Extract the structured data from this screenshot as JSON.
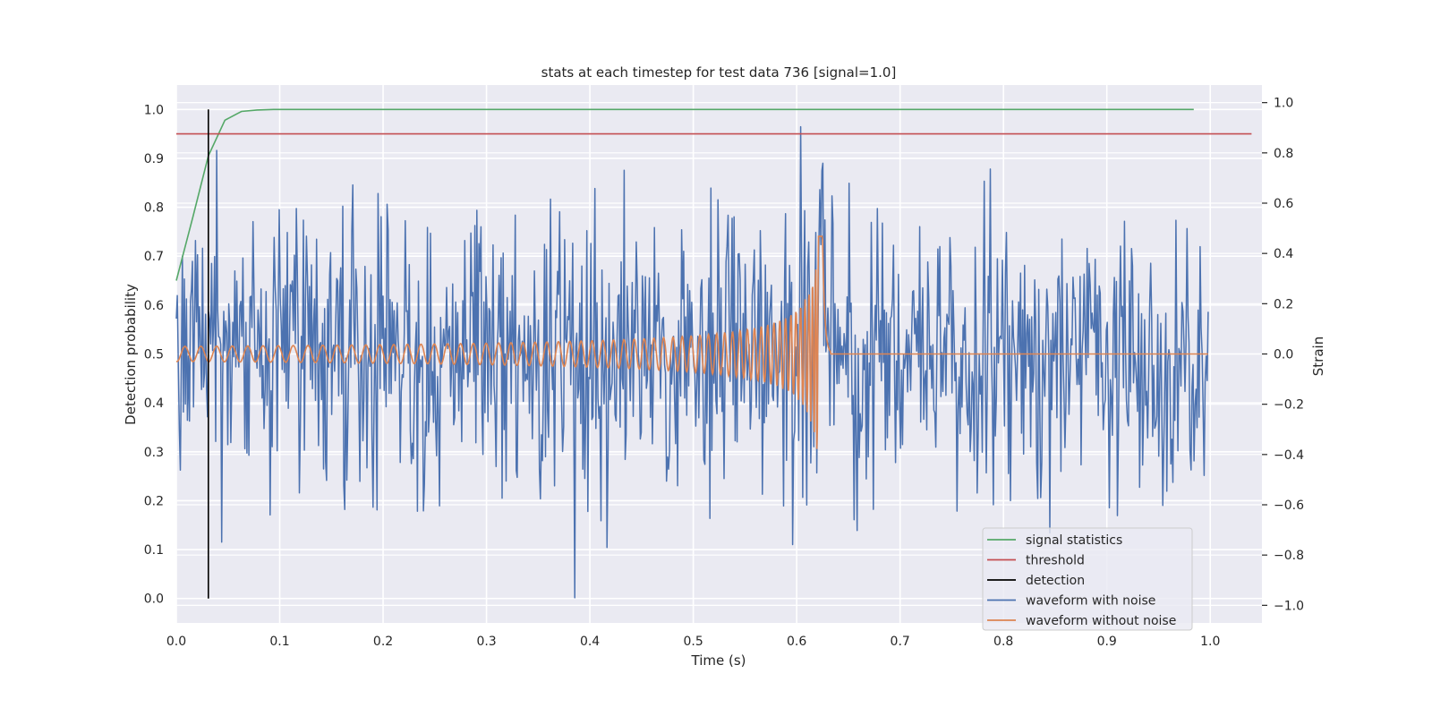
{
  "chart_data": {
    "type": "line",
    "title": "stats at each timestep for test data 736 [signal=1.0]",
    "xlabel": "Time (s)",
    "ylabel": "Detection probability",
    "y2label": "Strain",
    "xlim": [
      0.0,
      1.05
    ],
    "ylim": [
      -0.05,
      1.05
    ],
    "y2lim": [
      -1.07,
      1.07
    ],
    "x_ticks": [
      "0.0",
      "0.1",
      "0.2",
      "0.3",
      "0.4",
      "0.5",
      "0.6",
      "0.7",
      "0.8",
      "0.9",
      "1.0"
    ],
    "y_ticks": [
      "0.0",
      "0.1",
      "0.2",
      "0.3",
      "0.4",
      "0.5",
      "0.6",
      "0.7",
      "0.8",
      "0.9",
      "1.0"
    ],
    "y2_ticks": [
      "−1.0",
      "−0.8",
      "−0.6",
      "−0.4",
      "−0.2",
      "0.0",
      "0.2",
      "0.4",
      "0.6",
      "0.8",
      "1.0"
    ],
    "grid": true,
    "legend_position": "bottom-right",
    "series": [
      {
        "name": "signal statistics",
        "axis": "left",
        "color": "#55a868",
        "x": [
          0.0,
          0.016,
          0.031,
          0.047,
          0.063,
          0.078,
          0.094,
          0.2,
          0.4,
          0.6,
          0.8,
          0.984
        ],
        "y": [
          0.65,
          0.78,
          0.905,
          0.978,
          0.996,
          0.999,
          1.0,
          1.0,
          1.0,
          1.0,
          1.0,
          1.0
        ]
      },
      {
        "name": "threshold",
        "axis": "left",
        "color": "#c44e52",
        "x": [
          0.0,
          1.04
        ],
        "y": [
          0.95,
          0.95
        ]
      },
      {
        "name": "detection",
        "axis": "left",
        "color": "#000000",
        "x": [
          0.031,
          0.031
        ],
        "y": [
          0.0,
          1.0
        ]
      },
      {
        "name": "waveform with noise",
        "axis": "right",
        "color": "#4c72b0",
        "description": "noisy strain, approx. 1024 samples over 0-1 s, values between -0.97 and 1.0"
      },
      {
        "name": "waveform without noise",
        "axis": "right",
        "color": "#dd8452",
        "description": "chirp strain: amplitude ~0.03 at t=0 rising to ~0.47 peak at t~0.62 s, then ~0 after 0.63 s"
      }
    ]
  }
}
